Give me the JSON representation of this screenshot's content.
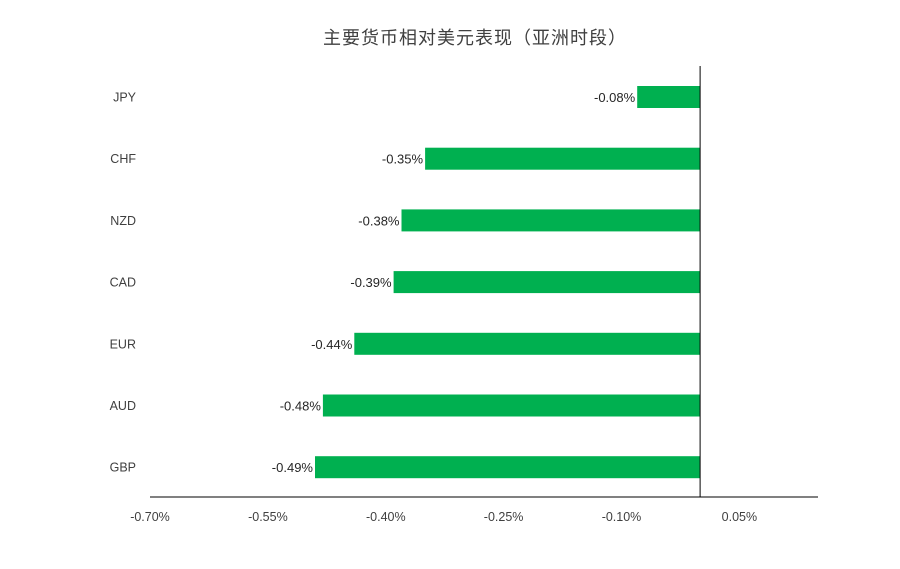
{
  "chart_data": {
    "type": "bar",
    "orientation": "horizontal",
    "title": "主要货币相对美元表现（亚洲时段）",
    "categories": [
      "JPY",
      "CHF",
      "NZD",
      "CAD",
      "EUR",
      "AUD",
      "GBP"
    ],
    "values": [
      -0.08,
      -0.35,
      -0.38,
      -0.39,
      -0.44,
      -0.48,
      -0.49
    ],
    "data_labels": [
      "-0.08%",
      "-0.35%",
      "-0.38%",
      "-0.39%",
      "-0.44%",
      "-0.48%",
      "-0.49%"
    ],
    "x_ticks": [
      -0.7,
      -0.55,
      -0.4,
      -0.25,
      -0.1,
      0.05
    ],
    "x_tick_labels": [
      "-0.70%",
      "-0.55%",
      "-0.40%",
      "-0.25%",
      "-0.10%",
      "0.05%"
    ],
    "xlim": [
      -0.7,
      0.15
    ],
    "xlabel": "",
    "ylabel": "",
    "grid": false,
    "legend": "none",
    "bar_color": "#00b050",
    "axis_color": "#000000",
    "label_color": "#404040"
  }
}
